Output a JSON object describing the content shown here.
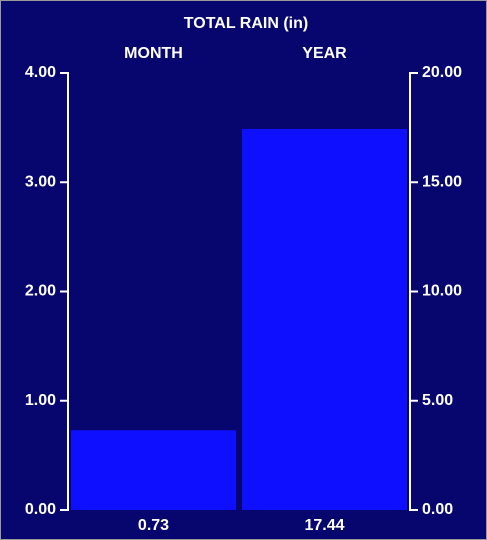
{
  "chart_data": {
    "type": "bar",
    "title": "TOTAL RAIN  (in)",
    "categories": [
      "MONTH",
      "YEAR"
    ],
    "values": [
      0.73,
      17.44
    ],
    "value_axes": [
      "y",
      "y2"
    ],
    "color": "#0f0fff",
    "ylim": [
      0,
      4
    ],
    "yticks": [
      {
        "value": 0,
        "label": "0.00"
      },
      {
        "value": 1,
        "label": "1.00"
      },
      {
        "value": 2,
        "label": "2.00"
      },
      {
        "value": 3,
        "label": "3.00"
      },
      {
        "value": 4,
        "label": "4.00"
      }
    ],
    "y2lim": [
      0,
      20
    ],
    "y2ticks": [
      {
        "value": 0,
        "label": "0.00"
      },
      {
        "value": 5,
        "label": "5.00"
      },
      {
        "value": 10,
        "label": "10.00"
      },
      {
        "value": 15,
        "label": "15.00"
      },
      {
        "value": 20,
        "label": "20.00"
      }
    ]
  }
}
